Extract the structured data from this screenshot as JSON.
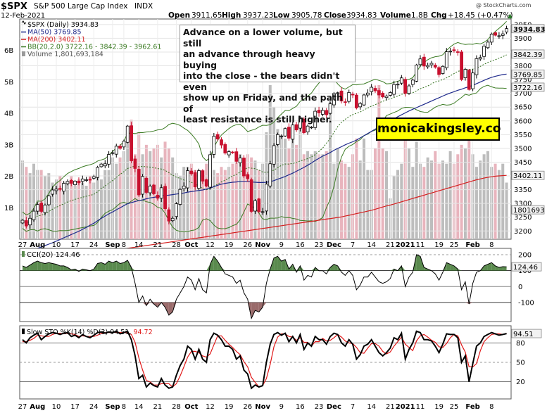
{
  "header": {
    "symbol": "$SPX",
    "name": "S&P 500 Large Cap Index",
    "exchange": "INDX",
    "date": "12-Feb-2021",
    "open_label": "Open",
    "open": "3911.65",
    "high_label": "High",
    "high": "3937.23",
    "low_label": "Low",
    "low": "3905.78",
    "close_label": "Close",
    "close": "3934.83",
    "volume_label": "Volume",
    "volume": "1.8B",
    "chg_label": "Chg",
    "chg": "+18.45 (+0.47%)",
    "chg_arrow": "▲",
    "watermark": "@ StockCharts.com"
  },
  "legend": {
    "price": "$SPX (Daily) 3934.83",
    "ma50": "MA(50) 3769.85",
    "ma200": "MA(200) 3402.11",
    "bb": "BB(20,2.0) 3722.16 - 3842.39 - 3962.61",
    "volume": "Volume 1,801,693,184"
  },
  "annotation": "Advance on a lower volume, but still an advance through heavy buying into the close - the bears didn't even show up on Friday, and the path of least resistance is still higher.",
  "annotation_lines": [
    "Advance on a lower volume, but still",
    "an advance through heavy buying",
    "into the close - the bears didn't even",
    "show up on Friday, and the path of",
    "least resistance is still higher."
  ],
  "brand": "monicakingsley.co",
  "cci_legend": "CCI(20) 124.46",
  "sto_legend_prefix": "Slow STO %K(14) %D(3) 94.51,",
  "sto_legend_d": "94.72",
  "colors": {
    "up": "#000000",
    "down": "#c8102e",
    "ma50": "#1f2a8c",
    "ma200": "#d42020",
    "bb": "#3a7a22",
    "bb_mid": "#2f6e1a",
    "vol_up": "#bdbdbd",
    "vol_down": "#e8b4bd",
    "cci_fill_pos": "#5a8a4e",
    "cci_fill_neg": "#9a6b6b",
    "sto_k": "#000000",
    "sto_d": "#e01818",
    "tag_bg": "#f2f2f2"
  },
  "chart_data": {
    "type": "candlestick",
    "x_axis": {
      "labels": [
        "27",
        "Aug",
        "10",
        "17",
        "24",
        "Sep",
        "8",
        "14",
        "21",
        "28",
        "Oct",
        "12",
        "19",
        "26",
        "Nov",
        "9",
        "16",
        "23",
        "Dec",
        "7",
        "14",
        "21",
        "2021",
        "11",
        "19",
        "25",
        "Feb",
        "8"
      ],
      "label_bar_index": [
        0,
        4,
        9,
        14,
        19,
        24,
        27,
        31,
        36,
        41,
        45,
        50,
        55,
        60,
        64,
        69,
        74,
        79,
        83,
        88,
        93,
        98,
        102,
        106,
        111,
        115,
        120,
        125
      ],
      "bold_labels": [
        "Aug",
        "Sep",
        "Oct",
        "Nov",
        "Dec",
        "2021",
        "Feb"
      ]
    },
    "price_axis": {
      "range": [
        3170,
        3970
      ],
      "ticks": [
        3200,
        3250,
        3300,
        3350,
        3400,
        3450,
        3500,
        3550,
        3600,
        3650,
        3700,
        3750,
        3800,
        3850,
        3900,
        3950
      ]
    },
    "price_tags": [
      {
        "value": "3934.83",
        "level": 3934.83,
        "bold": true
      },
      {
        "value": "3842.39",
        "level": 3842.39
      },
      {
        "value": "3769.85",
        "level": 3769.85
      },
      {
        "value": "3722.16",
        "level": 3722.16
      },
      {
        "value": "3402.11",
        "level": 3402.11
      },
      {
        "value": "1801693",
        "level": 3277
      }
    ],
    "volume_axis": {
      "range_billions": [
        0,
        7
      ],
      "ticks": [
        "1B",
        "2B",
        "3B",
        "4B",
        "5B",
        "6B"
      ]
    },
    "closes": [
      3239,
      3218,
      3246,
      3272,
      3296,
      3271,
      3294,
      3327,
      3349,
      3352,
      3351,
      3373,
      3380,
      3373,
      3381,
      3375,
      3389,
      3386,
      3385,
      3397,
      3431,
      3443,
      3444,
      3478,
      3484,
      3508,
      3500,
      3526,
      3581,
      3455,
      3427,
      3331,
      3398,
      3340,
      3363,
      3335,
      3319,
      3357,
      3281,
      3236,
      3246,
      3299,
      3351,
      3363,
      3419,
      3408,
      3360,
      3419,
      3381,
      3363,
      3477,
      3544,
      3534,
      3512,
      3483,
      3488,
      3484,
      3453,
      3465,
      3400,
      3390,
      3271,
      3310,
      3270,
      3270,
      3370,
      3444,
      3510,
      3550,
      3545,
      3572,
      3537,
      3585,
      3567,
      3609,
      3557,
      3581,
      3577,
      3635,
      3629,
      3638,
      3622,
      3662,
      3699,
      3702,
      3672,
      3668,
      3703,
      3695,
      3647,
      3663,
      3694,
      3701,
      3722,
      3709,
      3694,
      3687,
      3690,
      3703,
      3732,
      3733,
      3756,
      3700,
      3727,
      3748,
      3803,
      3825,
      3799,
      3801,
      3809,
      3795,
      3768,
      3798,
      3851,
      3853,
      3855,
      3849,
      3750,
      3787,
      3714,
      3774,
      3826,
      3830,
      3871,
      3886,
      3915,
      3911,
      3909,
      3916,
      3935
    ],
    "ma50": [
      3120,
      3124,
      3128,
      3132,
      3137,
      3142,
      3147,
      3152,
      3157,
      3163,
      3169,
      3175,
      3181,
      3187,
      3193,
      3199,
      3206,
      3213,
      3221,
      3228,
      3237,
      3246,
      3254,
      3262,
      3269,
      3277,
      3284,
      3292,
      3299,
      3303,
      3307,
      3310,
      3313,
      3317,
      3320,
      3322,
      3325,
      3327,
      3329,
      3330,
      3332,
      3334,
      3336,
      3338,
      3341,
      3343,
      3345,
      3347,
      3349,
      3352,
      3356,
      3361,
      3366,
      3370,
      3373,
      3375,
      3377,
      3378,
      3380,
      3380,
      3380,
      3378,
      3377,
      3376,
      3376,
      3377,
      3379,
      3383,
      3388,
      3393,
      3398,
      3404,
      3410,
      3417,
      3424,
      3431,
      3439,
      3447,
      3456,
      3464,
      3472,
      3478,
      3485,
      3493,
      3500,
      3506,
      3513,
      3519,
      3524,
      3530,
      3538,
      3546,
      3554,
      3562,
      3570,
      3578,
      3585,
      3592,
      3599,
      3607,
      3615,
      3622,
      3629,
      3636,
      3642,
      3648,
      3654,
      3660,
      3666,
      3672,
      3678,
      3684,
      3690,
      3696,
      3701,
      3706,
      3711,
      3715,
      3720,
      3724,
      3729,
      3735,
      3741,
      3747,
      3753,
      3758,
      3762,
      3765,
      3768,
      3770
    ],
    "ma200": [
      3080,
      3083,
      3085,
      3087,
      3089,
      3091,
      3093,
      3095,
      3097,
      3099,
      3101,
      3103,
      3105,
      3107,
      3109,
      3111,
      3113,
      3115,
      3117,
      3119,
      3121,
      3123,
      3125,
      3127,
      3129,
      3131,
      3133,
      3135,
      3137,
      3139,
      3141,
      3143,
      3145,
      3147,
      3149,
      3151,
      3153,
      3155,
      3157,
      3159,
      3161,
      3163,
      3165,
      3167,
      3169,
      3171,
      3173,
      3175,
      3177,
      3179,
      3181,
      3183,
      3185,
      3187,
      3189,
      3191,
      3193,
      3195,
      3197,
      3199,
      3201,
      3203,
      3205,
      3207,
      3209,
      3211,
      3213,
      3215,
      3217,
      3219,
      3221,
      3223,
      3225,
      3227,
      3229,
      3231,
      3233,
      3235,
      3237,
      3239,
      3241,
      3243,
      3245,
      3247,
      3249,
      3251,
      3254,
      3257,
      3260,
      3263,
      3266,
      3269,
      3272,
      3275,
      3279,
      3283,
      3287,
      3291,
      3294,
      3298,
      3302,
      3306,
      3310,
      3314,
      3318,
      3322,
      3326,
      3330,
      3334,
      3338,
      3342,
      3346,
      3350,
      3354,
      3358,
      3362,
      3366,
      3370,
      3374,
      3378,
      3382,
      3386,
      3389,
      3392,
      3395,
      3397,
      3399,
      3400,
      3401,
      3402
    ],
    "volume_billions": [
      2.5,
      2.3,
      2.1,
      2.4,
      2.2,
      2.2,
      2.0,
      2.1,
      1.8,
      1.9,
      2.0,
      1.8,
      1.8,
      2.0,
      1.7,
      1.9,
      1.8,
      1.7,
      2.0,
      1.8,
      2.1,
      1.9,
      2.2,
      2.2,
      2.6,
      2.4,
      2.6,
      2.8,
      3.4,
      3.8,
      2.7,
      3.4,
      2.7,
      3.0,
      2.8,
      2.9,
      3.0,
      2.6,
      3.1,
      2.9,
      2.6,
      2.1,
      2.0,
      2.3,
      2.3,
      2.4,
      2.2,
      2.0,
      2.1,
      2.4,
      2.2,
      2.2,
      2.1,
      2.3,
      2.2,
      2.3,
      2.4,
      2.7,
      2.7,
      2.5,
      2.7,
      2.6,
      2.5,
      2.2,
      2.4,
      3.4,
      4.9,
      4.2,
      3.5,
      3.3,
      3.2,
      2.9,
      3.2,
      3.0,
      3.6,
      2.7,
      2.8,
      2.7,
      2.8,
      2.7,
      2.7,
      2.8,
      4.4,
      2.4,
      2.9,
      2.5,
      2.4,
      2.3,
      2.7,
      3.2,
      2.5,
      3.2,
      2.2,
      2.2,
      2.9,
      4.9,
      2.9,
      2.8,
      1.3,
      2.0,
      2.2,
      2.4,
      3.2,
      2.9,
      2.3,
      3.1,
      2.4,
      2.3,
      2.6,
      2.5,
      2.8,
      2.4,
      2.5,
      2.4,
      2.8,
      2.4,
      2.7,
      3.0,
      2.9,
      3.5,
      2.7,
      2.3,
      2.5,
      2.7,
      2.8,
      2.3,
      2.4,
      2.2,
      2.4,
      1.8
    ],
    "cci": {
      "range": [
        -220,
        240
      ],
      "ticks": [
        -100,
        0,
        100,
        200
      ],
      "legend_value": 124.46,
      "values": [
        130,
        120,
        135,
        150,
        160,
        150,
        145,
        150,
        145,
        140,
        130,
        130,
        120,
        105,
        110,
        95,
        110,
        105,
        100,
        110,
        145,
        150,
        140,
        160,
        150,
        160,
        145,
        150,
        165,
        120,
        20,
        -100,
        -60,
        -120,
        -80,
        -110,
        -130,
        -100,
        -130,
        -180,
        -160,
        -80,
        -40,
        0,
        60,
        40,
        -20,
        50,
        -20,
        -40,
        140,
        190,
        160,
        120,
        80,
        70,
        60,
        20,
        40,
        -40,
        -80,
        -200,
        -150,
        -160,
        -130,
        20,
        110,
        180,
        190,
        160,
        170,
        110,
        140,
        90,
        130,
        40,
        70,
        60,
        120,
        100,
        100,
        80,
        120,
        140,
        130,
        90,
        70,
        100,
        70,
        -20,
        10,
        60,
        60,
        90,
        60,
        30,
        20,
        30,
        50,
        110,
        100,
        130,
        0,
        60,
        90,
        200,
        190,
        120,
        110,
        100,
        80,
        40,
        90,
        150,
        140,
        130,
        110,
        -20,
        30,
        -110,
        20,
        90,
        100,
        130,
        140,
        150,
        130,
        120,
        125,
        124
      ]
    },
    "stochastic": {
      "range": [
        0,
        100
      ],
      "ticks": [
        20,
        50,
        80
      ],
      "k_legend": 94.51,
      "d_legend": 94.72,
      "k": [
        85,
        80,
        88,
        92,
        95,
        85,
        90,
        94,
        96,
        95,
        93,
        95,
        96,
        90,
        92,
        88,
        93,
        90,
        88,
        92,
        96,
        97,
        95,
        97,
        96,
        98,
        94,
        96,
        98,
        85,
        60,
        25,
        30,
        12,
        18,
        14,
        12,
        25,
        15,
        10,
        12,
        30,
        45,
        55,
        75,
        70,
        55,
        70,
        55,
        50,
        85,
        95,
        92,
        85,
        75,
        75,
        70,
        55,
        60,
        38,
        32,
        10,
        15,
        12,
        14,
        50,
        78,
        93,
        96,
        92,
        95,
        82,
        90,
        80,
        93,
        70,
        80,
        75,
        90,
        85,
        85,
        78,
        90,
        95,
        93,
        80,
        75,
        85,
        78,
        55,
        62,
        75,
        78,
        85,
        75,
        65,
        60,
        65,
        72,
        88,
        85,
        95,
        55,
        70,
        80,
        98,
        96,
        85,
        85,
        83,
        75,
        65,
        78,
        94,
        93,
        93,
        88,
        50,
        60,
        20,
        48,
        75,
        80,
        90,
        93,
        96,
        94,
        92,
        93,
        94.5
      ],
      "d": [
        82,
        82,
        84,
        87,
        92,
        91,
        90,
        90,
        93,
        95,
        95,
        94,
        95,
        94,
        93,
        90,
        91,
        90,
        90,
        90,
        92,
        95,
        96,
        96,
        96,
        97,
        96,
        96,
        96,
        93,
        81,
        57,
        38,
        22,
        20,
        15,
        15,
        17,
        17,
        17,
        12,
        17,
        29,
        43,
        58,
        67,
        67,
        65,
        60,
        58,
        63,
        77,
        91,
        91,
        84,
        78,
        73,
        67,
        62,
        51,
        43,
        27,
        19,
        12,
        14,
        25,
        47,
        74,
        89,
        94,
        94,
        90,
        89,
        84,
        88,
        81,
        81,
        75,
        82,
        82,
        87,
        83,
        84,
        88,
        93,
        89,
        83,
        80,
        79,
        73,
        65,
        64,
        72,
        79,
        79,
        75,
        67,
        63,
        66,
        75,
        82,
        89,
        78,
        73,
        68,
        83,
        91,
        93,
        89,
        84,
        81,
        74,
        73,
        79,
        88,
        93,
        91,
        77,
        66,
        43,
        43,
        48,
        68,
        82,
        88,
        93,
        94,
        94,
        93,
        94.7
      ]
    }
  }
}
